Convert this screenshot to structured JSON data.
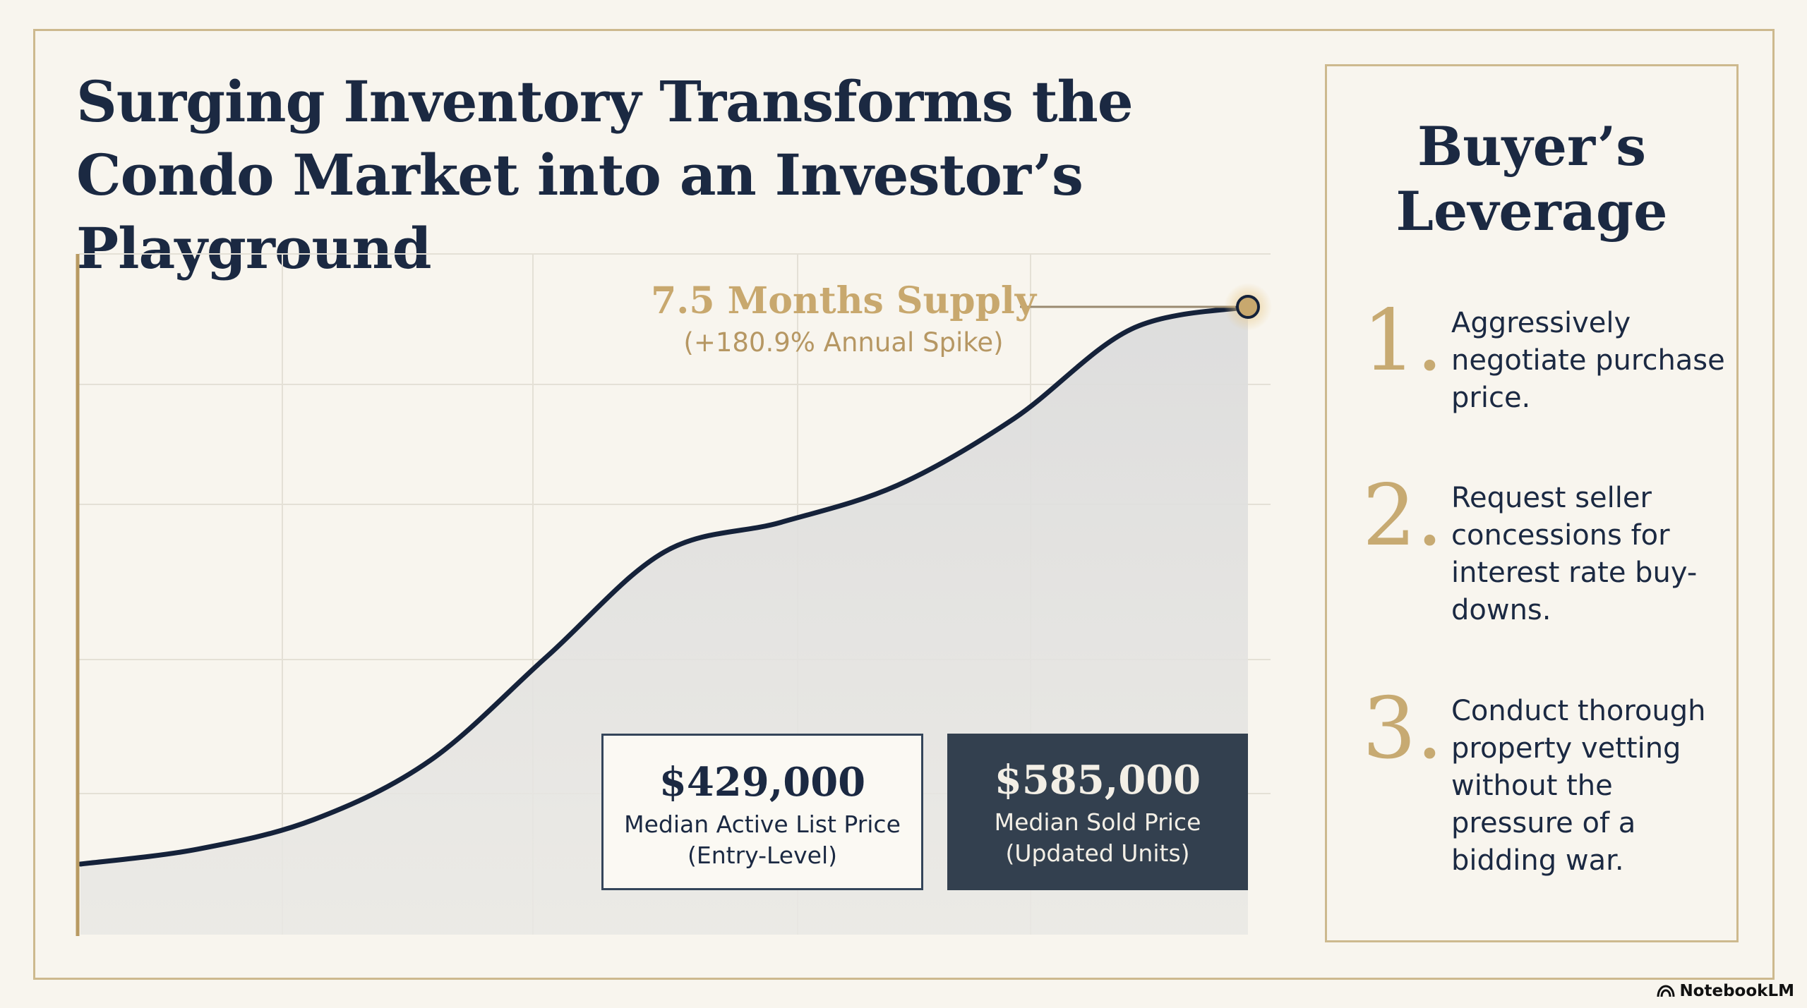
{
  "title": "Surging Inventory Transforms the Condo Market into an Investor’s Playground",
  "chart_data": {
    "type": "area",
    "title": "",
    "xlabel": "",
    "ylabel": "",
    "grid": true,
    "legend": "none",
    "x": [
      0,
      1,
      2,
      3,
      4,
      5,
      6,
      7,
      8,
      9,
      10
    ],
    "values": [
      0.0,
      0.2,
      0.6,
      1.4,
      2.8,
      4.2,
      4.6,
      5.1,
      6.0,
      7.2,
      7.5
    ],
    "peak_label": "7.5 Months Supply",
    "peak_sublabel": "(+180.9% Annual Spike)",
    "line_color": "#15223a",
    "fill_color": "#e2e3e4",
    "accent_color": "#c8a86e"
  },
  "stats": [
    {
      "value": "$429,000",
      "label_line1": "Median Active List Price",
      "label_line2": "(Entry-Level)"
    },
    {
      "value": "$585,000",
      "label_line1": "Median Sold Price",
      "label_line2": "(Updated Units)"
    }
  ],
  "panel": {
    "title_line1": "Buyer’s",
    "title_line2": "Leverage",
    "steps": [
      {
        "number": "1.",
        "text": "Aggressively negotiate purchase price."
      },
      {
        "number": "2.",
        "text": "Request seller concessions for interest rate buy-downs."
      },
      {
        "number": "3.",
        "text": "Conduct thorough property vetting without the pressure of a bidding war."
      }
    ]
  },
  "brand": {
    "name": "NotebookLM",
    "icon": "notebooklm-logo-icon"
  }
}
